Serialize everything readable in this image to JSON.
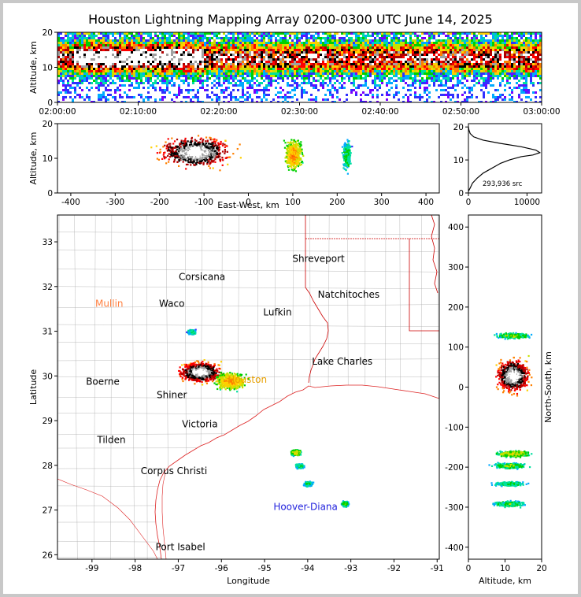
{
  "title": "Houston Lightning Mapping Array 0200-0300 UTC June 14, 2025",
  "colors": {
    "border": "#c8c8c8",
    "state_lines": "#cc0000",
    "county_lines": "#aaaaaa",
    "coast": "#dd2222",
    "city_default": "#000000",
    "city_mullin": "#ff7f3f",
    "city_houston": "#e8a000",
    "city_hoover": "#2222dd",
    "density_ramp": [
      "#7a00ff",
      "#3030ff",
      "#00aaff",
      "#00e0a0",
      "#00d000",
      "#c8e000",
      "#ffd000",
      "#ff8000",
      "#ff0000",
      "#b00000",
      "#000000",
      "#a0a0a0",
      "#ffffff"
    ]
  },
  "chart_data": [
    {
      "id": "time_height",
      "type": "heatmap",
      "xlabel": "",
      "ylabel": "Altitude, km",
      "xlim": [
        "02:00:00",
        "03:00:00"
      ],
      "ylim": [
        0,
        20
      ],
      "x_ticks": [
        "02:00:00",
        "02:10:00",
        "02:20:00",
        "02:30:00",
        "02:40:00",
        "02:50:00",
        "03:00:00"
      ],
      "y_ticks": [
        0,
        10,
        20
      ],
      "band_core_altitude_km": 13,
      "band_core_span_minutes": [
        2,
        18
      ]
    },
    {
      "id": "ew_height",
      "type": "heatmap",
      "xlabel": "East-West, km",
      "ylabel": "Altitude, km",
      "xlim": [
        -430,
        430
      ],
      "ylim": [
        0,
        20
      ],
      "x_ticks": [
        -400,
        -300,
        -200,
        -100,
        0,
        100,
        200,
        300,
        400
      ],
      "y_ticks": [
        0,
        10,
        20
      ],
      "clusters": [
        {
          "x_km": -120,
          "alt_km": 12,
          "width_km": 160,
          "intensity": 1.0
        },
        {
          "x_km": 100,
          "alt_km": 11,
          "width_km": 40,
          "intensity": 0.55
        },
        {
          "x_km": 220,
          "alt_km": 11,
          "width_km": 20,
          "intensity": 0.3
        }
      ]
    },
    {
      "id": "altitude_histogram",
      "type": "line",
      "xlabel": "",
      "ylabel": "",
      "xlim": [
        0,
        12500
      ],
      "ylim": [
        0,
        21
      ],
      "x_ticks": [
        0,
        10000
      ],
      "y_ticks": [
        0,
        10,
        20
      ],
      "annotation": "293,936 src",
      "x": [
        0,
        300,
        700,
        1500,
        2500,
        3500,
        4500,
        5500,
        7000,
        9000,
        11000,
        12200,
        11500,
        9000,
        5500,
        2500,
        900,
        300,
        100,
        0
      ],
      "y": [
        0.5,
        1.5,
        3,
        4.5,
        6,
        7,
        8,
        9,
        10,
        11,
        11.5,
        12.2,
        13,
        14,
        15,
        16,
        17,
        18,
        19,
        20
      ]
    },
    {
      "id": "plan_view",
      "type": "scatter",
      "xlabel": "Longitude",
      "ylabel": "Latitude",
      "xlim": [
        -99.8,
        -90.95
      ],
      "ylim": [
        25.9,
        33.6
      ],
      "x_ticks": [
        -99,
        -98,
        -97,
        -96,
        -95,
        -94,
        -93,
        -92,
        -91
      ],
      "y_ticks": [
        26,
        27,
        28,
        29,
        30,
        31,
        32,
        33
      ],
      "clusters": [
        {
          "lon": -96.5,
          "lat": 30.1,
          "rx": 0.75,
          "ry": 0.35,
          "intensity": 1.0
        },
        {
          "lon": -95.8,
          "lat": 29.9,
          "rx": 0.55,
          "ry": 0.3,
          "intensity": 0.55
        },
        {
          "lon": -96.7,
          "lat": 31.0,
          "rx": 0.15,
          "ry": 0.08,
          "intensity": 0.3
        },
        {
          "lon": -94.3,
          "lat": 28.3,
          "rx": 0.18,
          "ry": 0.1,
          "intensity": 0.45
        },
        {
          "lon": -94.2,
          "lat": 28.0,
          "rx": 0.15,
          "ry": 0.08,
          "intensity": 0.3
        },
        {
          "lon": -94.0,
          "lat": 27.6,
          "rx": 0.15,
          "ry": 0.08,
          "intensity": 0.3
        },
        {
          "lon": -93.15,
          "lat": 27.15,
          "rx": 0.12,
          "ry": 0.1,
          "intensity": 0.35
        }
      ],
      "cities": [
        {
          "name": "Shreveport",
          "lon": -93.75,
          "lat": 32.55,
          "color": "#000000"
        },
        {
          "name": "Corsicana",
          "lon": -96.45,
          "lat": 32.15,
          "color": "#000000"
        },
        {
          "name": "Natchitoches",
          "lon": -93.05,
          "lat": 31.75,
          "color": "#000000"
        },
        {
          "name": "Mullin",
          "lon": -98.6,
          "lat": 31.55,
          "color": "#ff7f3f"
        },
        {
          "name": "Waco",
          "lon": -97.15,
          "lat": 31.55,
          "color": "#000000"
        },
        {
          "name": "Lufkin",
          "lon": -94.7,
          "lat": 31.35,
          "color": "#000000"
        },
        {
          "name": "Lake Charles",
          "lon": -93.2,
          "lat": 30.25,
          "color": "#000000"
        },
        {
          "name": "Boerne",
          "lon": -98.75,
          "lat": 29.8,
          "color": "#000000"
        },
        {
          "name": "Houston",
          "lon": -95.4,
          "lat": 29.85,
          "color": "#e8a000"
        },
        {
          "name": "Shiner",
          "lon": -97.15,
          "lat": 29.5,
          "color": "#000000"
        },
        {
          "name": "Victoria",
          "lon": -96.5,
          "lat": 28.85,
          "color": "#000000"
        },
        {
          "name": "Tilden",
          "lon": -98.55,
          "lat": 28.5,
          "color": "#000000"
        },
        {
          "name": "Corpus Christi",
          "lon": -97.1,
          "lat": 27.8,
          "color": "#000000"
        },
        {
          "name": "Hoover-Diana",
          "lon": -94.05,
          "lat": 27.0,
          "color": "#2222dd"
        },
        {
          "name": "Port Isabel",
          "lon": -96.95,
          "lat": 26.1,
          "color": "#000000"
        }
      ]
    },
    {
      "id": "ns_height",
      "type": "heatmap",
      "xlabel": "Altitude, km",
      "ylabel": "North-South, km",
      "xlim": [
        0,
        20
      ],
      "ylim": [
        -430,
        430
      ],
      "x_ticks": [
        0,
        10,
        20
      ],
      "y_ticks": [
        -400,
        -300,
        -200,
        -100,
        0,
        100,
        200,
        300,
        400
      ],
      "clusters": [
        {
          "ns_km": 30,
          "alt_km": 12,
          "span_km": 80,
          "intensity": 1.0
        },
        {
          "ns_km": 130,
          "alt_km": 12,
          "span_km": 15,
          "intensity": 0.35
        },
        {
          "ns_km": -165,
          "alt_km": 12,
          "span_km": 15,
          "intensity": 0.45
        },
        {
          "ns_km": -195,
          "alt_km": 11,
          "span_km": 15,
          "intensity": 0.35
        },
        {
          "ns_km": -240,
          "alt_km": 11,
          "span_km": 12,
          "intensity": 0.3
        },
        {
          "ns_km": -290,
          "alt_km": 11,
          "span_km": 15,
          "intensity": 0.3
        }
      ]
    }
  ]
}
